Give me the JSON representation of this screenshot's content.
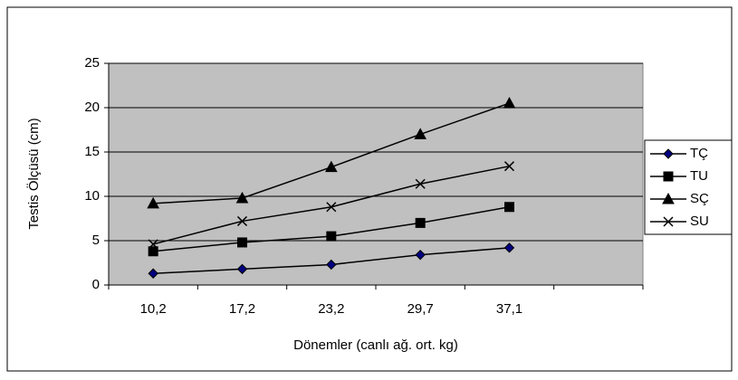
{
  "chart_data": {
    "type": "line",
    "x_label": "Dönemler (canlı ağ. ort. kg)",
    "y_label": "Testis Ölçüsü (cm)",
    "categories": [
      "10,2",
      "17,2",
      "23,2",
      "29,7",
      "37,1",
      null
    ],
    "series": [
      {
        "name": "TÇ",
        "color": "#000000",
        "marker": "diamond",
        "marker_color": "#000080",
        "values": [
          1.3,
          1.8,
          2.3,
          3.4,
          4.2,
          null
        ]
      },
      {
        "name": "TU",
        "color": "#000000",
        "marker": "square",
        "marker_color": "#000000",
        "values": [
          3.8,
          4.8,
          5.5,
          7.0,
          8.8,
          null
        ]
      },
      {
        "name": "SÇ",
        "color": "#000000",
        "marker": "triangle",
        "marker_color": "#000000",
        "values": [
          9.2,
          9.8,
          13.3,
          17.0,
          20.5,
          null
        ]
      },
      {
        "name": "SU",
        "color": "#000000",
        "marker": "x",
        "marker_color": "#000000",
        "values": [
          4.6,
          7.2,
          8.8,
          11.4,
          13.4,
          null
        ]
      }
    ],
    "ylim": [
      0,
      25
    ],
    "yticks": [
      0,
      5,
      10,
      15,
      20,
      25
    ],
    "grid": true,
    "plot_background": "#c0c0c0",
    "legend": "right"
  }
}
